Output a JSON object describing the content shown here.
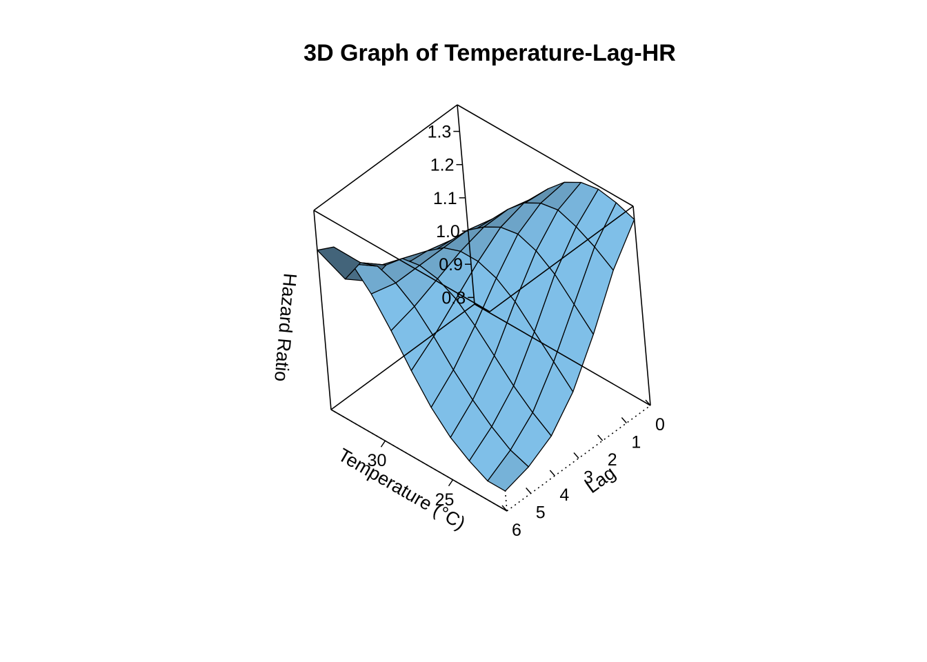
{
  "chart_data": {
    "type": "surface3d",
    "title": "3D Graph of Temperature-Lag-HR",
    "x_axis": {
      "label": "Temperature (°C)",
      "ticks": [
        "25",
        "30"
      ],
      "range": [
        21,
        34
      ]
    },
    "y_axis": {
      "label": "Lag",
      "ticks": [
        "0",
        "1",
        "2",
        "3",
        "4",
        "5",
        "6"
      ],
      "range": [
        0,
        6
      ]
    },
    "z_axis": {
      "label": "Hazard Ratio",
      "ticks": [
        "0.8",
        "0.9",
        "1.0",
        "1.1",
        "1.2",
        "1.3"
      ],
      "range": [
        0.78,
        1.38
      ]
    },
    "surface_color": "#7fbfe8",
    "temperature": [
      21,
      22.3,
      23.6,
      24.9,
      26.2,
      27.5,
      28.8,
      30.1,
      31.4,
      32.7,
      34
    ],
    "lag": [
      0,
      1,
      2,
      3,
      4,
      5,
      6
    ],
    "hazard_ratio": [
      [
        1.34,
        1.36,
        1.37,
        1.36,
        1.33,
        1.28,
        1.22,
        1.16,
        1.1,
        1.04,
        0.98
      ],
      [
        1.24,
        1.28,
        1.31,
        1.33,
        1.32,
        1.29,
        1.24,
        1.18,
        1.12,
        1.06,
        1.0
      ],
      [
        1.1,
        1.16,
        1.22,
        1.26,
        1.28,
        1.27,
        1.24,
        1.2,
        1.14,
        1.08,
        1.02
      ],
      [
        0.98,
        1.04,
        1.1,
        1.16,
        1.2,
        1.22,
        1.22,
        1.2,
        1.16,
        1.1,
        1.04
      ],
      [
        0.9,
        0.94,
        0.99,
        1.05,
        1.11,
        1.16,
        1.19,
        1.2,
        1.19,
        1.14,
        1.06
      ],
      [
        0.86,
        0.88,
        0.92,
        0.97,
        1.03,
        1.1,
        1.16,
        1.2,
        1.22,
        1.2,
        1.12
      ],
      [
        0.84,
        0.84,
        0.87,
        0.91,
        0.97,
        1.05,
        1.14,
        1.22,
        1.28,
        1.3,
        1.26
      ]
    ]
  }
}
